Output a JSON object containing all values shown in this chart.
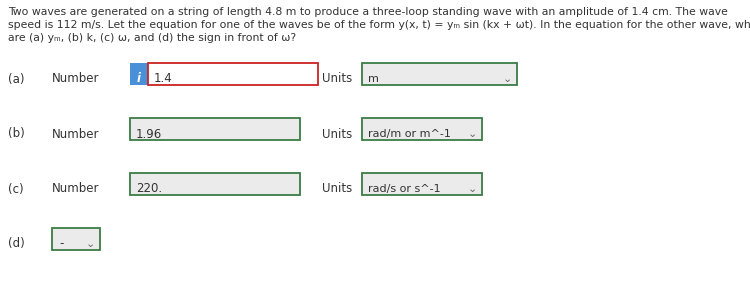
{
  "bg_color": "#ffffff",
  "text_color": "#333333",
  "box_bg": "#ebebeb",
  "info_btn_color": "#4a90d9",
  "green_border": "#3a7d44",
  "red_border": "#cc2222",
  "line1": "Two waves are generated on a string of length 4.8 m to produce a three-loop standing wave with an amplitude of 1.4 cm. The wave",
  "line2": "speed is 112 m/s. Let the equation for one of the waves be of the form y(x, t) = y_m sin (kx + ωt). In the equation for the other wave, what",
  "line3": "are (a) y_m, (b) k, (c) ω, and (d) the sign in front of ω?",
  "rows": [
    {
      "label": "(a)",
      "show_number_label": true,
      "has_info_btn": true,
      "number_value": "1.4",
      "units_value": "m",
      "number_box_border": "#cc2222",
      "units_box_border": "#3a7d44",
      "units_box_wide": true
    },
    {
      "label": "(b)",
      "show_number_label": true,
      "has_info_btn": false,
      "number_value": "1.96",
      "units_value": "rad/m or m^-1",
      "number_box_border": "#3a7d44",
      "units_box_border": "#3a7d44",
      "units_box_wide": false
    },
    {
      "label": "(c)",
      "show_number_label": true,
      "has_info_btn": false,
      "number_value": "220.",
      "units_value": "rad/s or s^-1",
      "number_box_border": "#3a7d44",
      "units_box_border": "#3a7d44",
      "units_box_wide": false
    },
    {
      "label": "(d)",
      "show_number_label": false,
      "has_info_btn": false,
      "number_value": "-",
      "units_value": null,
      "number_box_border": "#3a7d44",
      "units_box_border": null,
      "units_box_wide": false
    }
  ]
}
